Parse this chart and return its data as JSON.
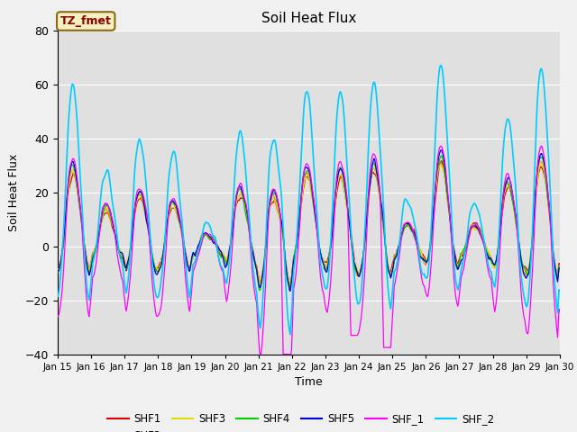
{
  "title": "Soil Heat Flux",
  "xlabel": "Time",
  "ylabel": "Soil Heat Flux",
  "ylim": [
    -40,
    80
  ],
  "yticks": [
    -40,
    -20,
    0,
    20,
    40,
    60,
    80
  ],
  "x_tick_labels": [
    "Jan 15",
    "Jan 16",
    "Jan 17",
    "Jan 18",
    "Jan 19",
    "Jan 20",
    "Jan 21",
    "Jan 22",
    "Jan 23",
    "Jan 24",
    "Jan 25",
    "Jan 26",
    "Jan 27",
    "Jan 28",
    "Jan 29",
    "Jan 30"
  ],
  "fig_bg_color": "#f0f0f0",
  "plot_bg_color": "#e0e0e0",
  "legend_label": "TZ_fmet",
  "legend_bg": "#f5f0c0",
  "legend_text_color": "#8b0000",
  "legend_border": "#8b6914",
  "series_colors": {
    "SHF1": "#dd0000",
    "SHF2": "#ff8800",
    "SHF3": "#dddd00",
    "SHF4": "#00cc00",
    "SHF5": "#0000dd",
    "SHF_1": "#ff00ff",
    "SHF_2": "#00ccff"
  },
  "seed": 12345
}
